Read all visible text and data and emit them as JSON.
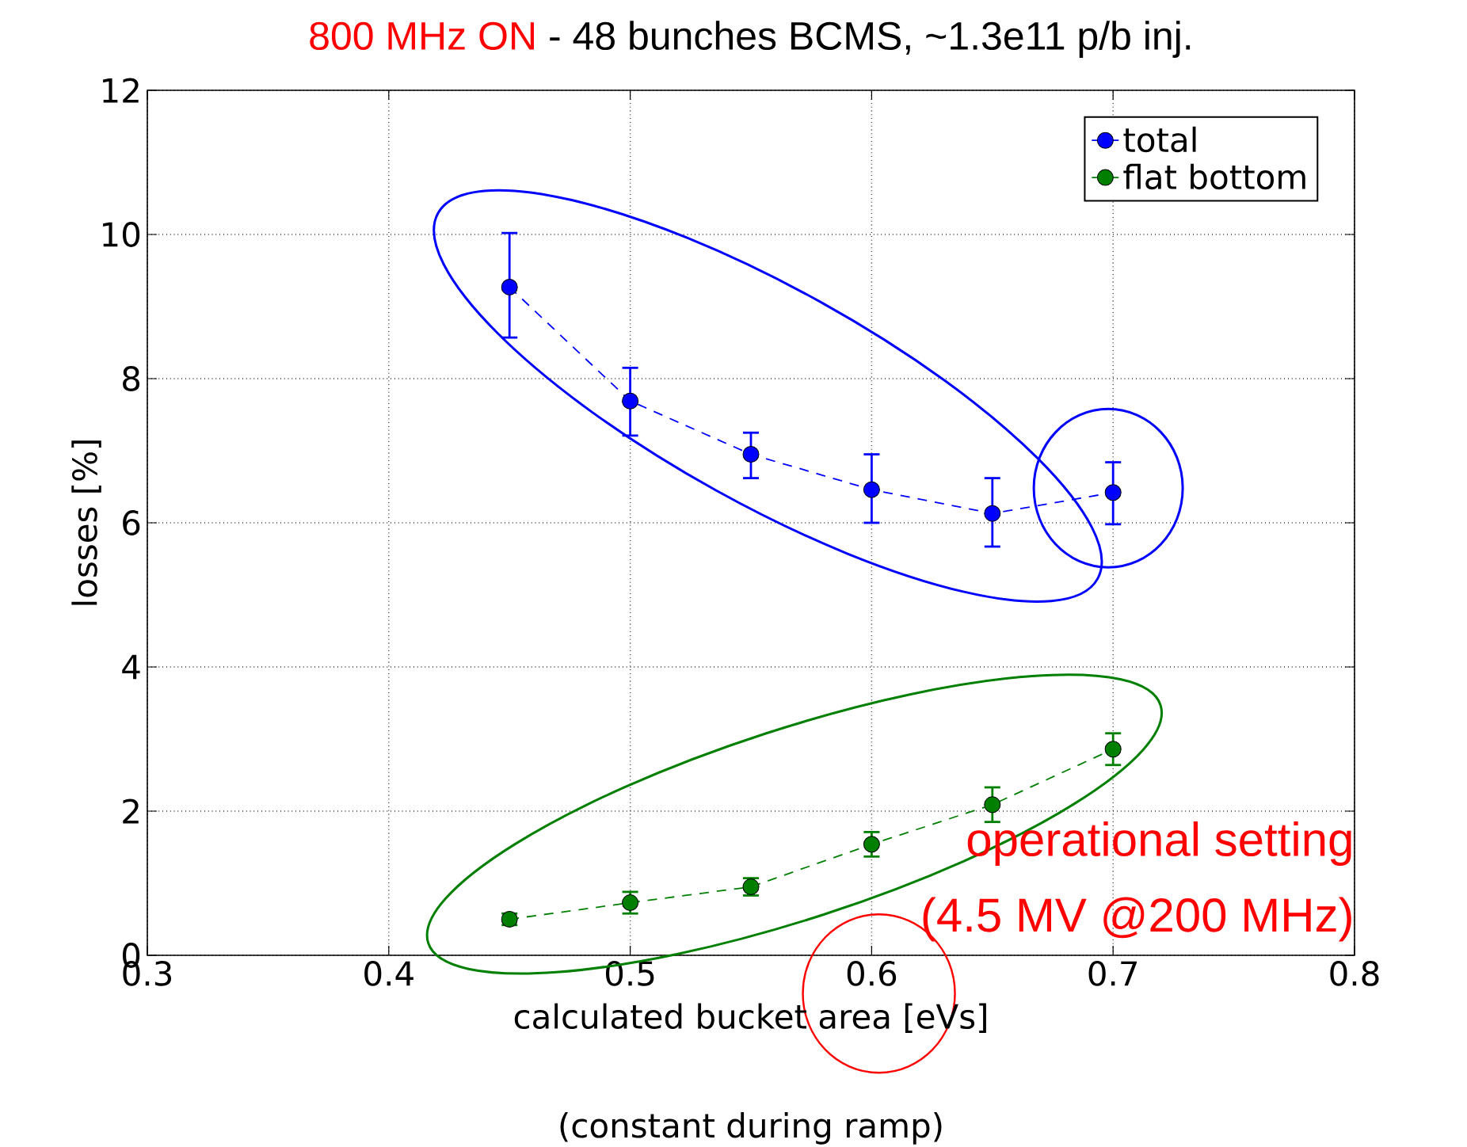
{
  "chart_data": {
    "type": "line",
    "title": "800 MHz ON",
    "subtitle": "- 48 bunches BCMS, ~1.3e11 p/b inj.",
    "xlabel": "calculated bucket area [eVs]",
    "ylabel": "losses [%]",
    "x": [
      0.45,
      0.5,
      0.55,
      0.6,
      0.65,
      0.7
    ],
    "series": [
      {
        "name": "total",
        "color": "#0000ff",
        "values": [
          9.27,
          7.69,
          6.95,
          6.46,
          6.13,
          6.42
        ],
        "errors": [
          [
            8.57,
            10.02
          ],
          [
            7.21,
            8.15
          ],
          [
            6.62,
            7.25
          ],
          [
            6.0,
            6.95
          ],
          [
            5.67,
            6.62
          ],
          [
            5.98,
            6.84
          ]
        ]
      },
      {
        "name": "flat bottom",
        "color": "#007f00",
        "values": [
          0.5,
          0.73,
          0.95,
          1.54,
          2.09,
          2.86
        ],
        "errors": [
          0.08,
          0.15,
          0.12,
          0.17,
          0.24,
          0.22
        ]
      }
    ],
    "xlim": [
      0.3,
      0.8
    ],
    "ylim": [
      0,
      12
    ],
    "xticks": [
      0.3,
      0.4,
      0.5,
      0.6,
      0.7,
      0.8
    ],
    "yticks": [
      0,
      2,
      4,
      6,
      8,
      10,
      12
    ],
    "grid": true,
    "legend": "top right",
    "marker": "circle",
    "line_style": "dashed",
    "annotations": [
      "operational setting",
      "(4.5 MV @200 MHz)",
      "(constant during ramp)"
    ]
  }
}
